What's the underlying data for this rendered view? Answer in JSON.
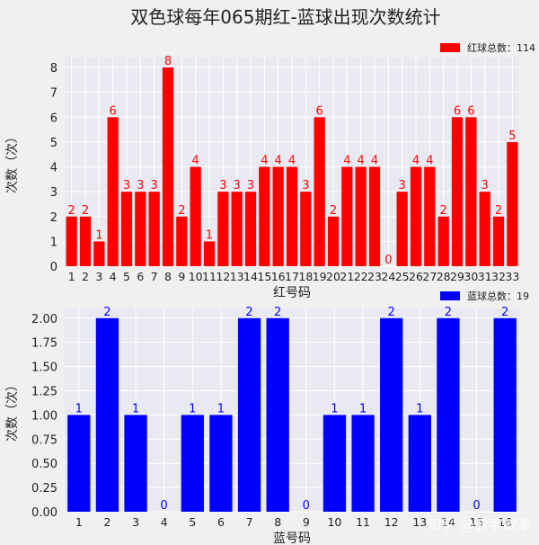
{
  "title": "双色球每年065期红-蓝球出现次数统计",
  "watermark": "知乎 @数字故事",
  "colors": {
    "background": "#f0f0f0",
    "plot_bg": "#e9e9f2",
    "grid": "#ffffff",
    "red": "#ff0000",
    "blue": "#0000ff",
    "text": "#222222"
  },
  "chart_data": [
    {
      "type": "bar",
      "xlabel": "红号码",
      "ylabel": "次数（次）",
      "legend": "红球总数：114",
      "legend_position": "top-right",
      "grid": true,
      "ylim": [
        0,
        8.4
      ],
      "yticks": [
        "0",
        "1",
        "2",
        "3",
        "4",
        "5",
        "6",
        "7",
        "8"
      ],
      "categories": [
        "1",
        "2",
        "3",
        "4",
        "5",
        "6",
        "7",
        "8",
        "9",
        "10",
        "11",
        "12",
        "13",
        "14",
        "15",
        "16",
        "17",
        "18",
        "19",
        "20",
        "21",
        "22",
        "23",
        "24",
        "25",
        "26",
        "27",
        "28",
        "29",
        "30",
        "31",
        "32",
        "33"
      ],
      "values": [
        2,
        2,
        1,
        6,
        3,
        3,
        3,
        8,
        2,
        4,
        1,
        3,
        3,
        3,
        4,
        4,
        4,
        3,
        6,
        2,
        4,
        4,
        4,
        0,
        3,
        4,
        4,
        2,
        6,
        6,
        3,
        2,
        5
      ],
      "color": "#ff0000",
      "label_color": "#ff0000"
    },
    {
      "type": "bar",
      "xlabel": "蓝号码",
      "ylabel": "次数（次）",
      "legend": "蓝球总数：19",
      "legend_position": "top-right",
      "grid": true,
      "ylim": [
        0,
        2.1
      ],
      "yticks": [
        "0.00",
        "0.25",
        "0.50",
        "0.75",
        "1.00",
        "1.25",
        "1.50",
        "1.75",
        "2.00"
      ],
      "categories": [
        "1",
        "2",
        "3",
        "4",
        "5",
        "6",
        "7",
        "8",
        "9",
        "10",
        "11",
        "12",
        "13",
        "14",
        "15",
        "16"
      ],
      "values": [
        1,
        2,
        1,
        0,
        1,
        1,
        2,
        2,
        0,
        1,
        1,
        2,
        1,
        2,
        0,
        2
      ],
      "color": "#0000ff",
      "label_color": "#0000ff"
    }
  ]
}
